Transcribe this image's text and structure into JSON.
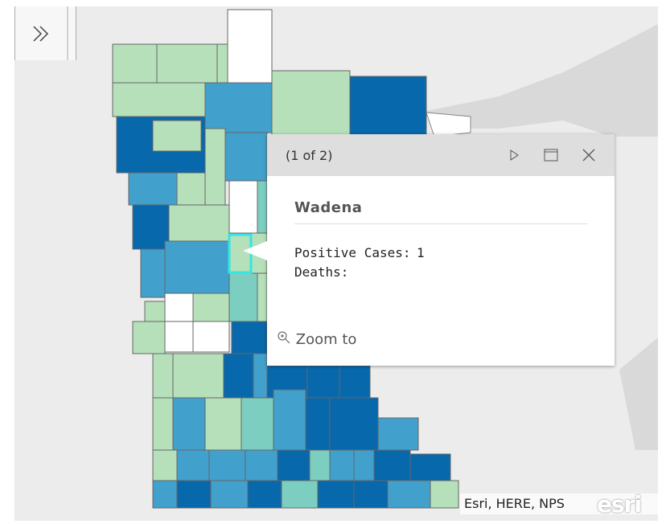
{
  "popup": {
    "pager": "(1 of 2)",
    "title": "Wadena",
    "fields": [
      {
        "label": "Positive Cases:",
        "value": 1
      },
      {
        "label": "Deaths:"
      }
    ],
    "action": "Zoom to"
  },
  "attribution": "Esri, HERE, NPS",
  "logo": "esri"
}
